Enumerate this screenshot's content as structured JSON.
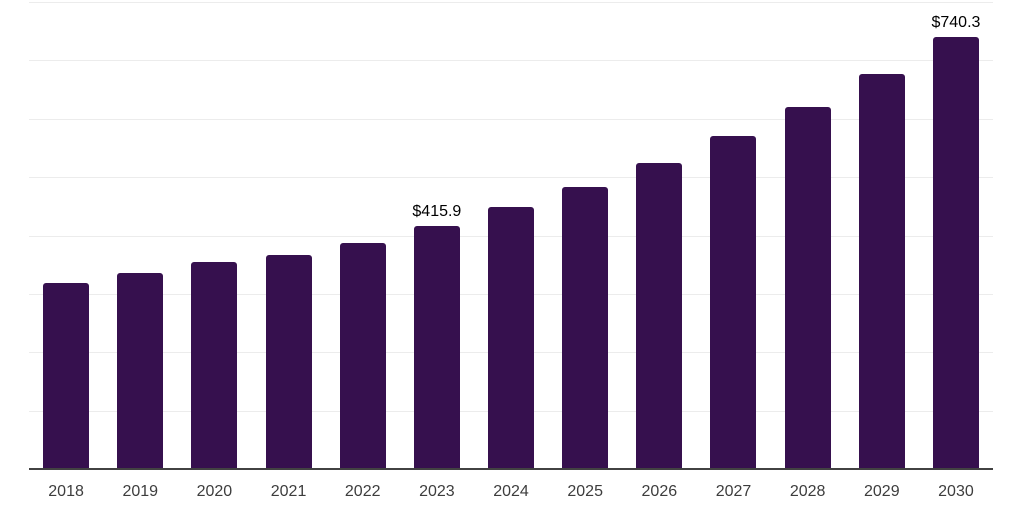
{
  "chart_data": {
    "type": "bar",
    "categories": [
      "2018",
      "2019",
      "2020",
      "2021",
      "2022",
      "2023",
      "2024",
      "2025",
      "2026",
      "2027",
      "2028",
      "2029",
      "2030"
    ],
    "values": [
      318,
      335,
      354,
      367,
      388,
      415.9,
      448,
      483,
      524,
      570,
      620,
      677,
      740.3
    ],
    "data_labels": [
      {
        "category": "2023",
        "text": "$415.9"
      },
      {
        "category": "2030",
        "text": "$740.3"
      }
    ],
    "title": "",
    "xlabel": "",
    "ylabel": "",
    "ylim": [
      0,
      800
    ],
    "grid_interval": 100,
    "grid": true,
    "legend": false,
    "y_tick_labels_shown": false
  },
  "colors": {
    "bar": "#36104E",
    "gridline": "#ececec",
    "axis_line": "#424242",
    "data_label": "#000000",
    "tick_label": "#3d3d3d",
    "background": "#ffffff"
  }
}
